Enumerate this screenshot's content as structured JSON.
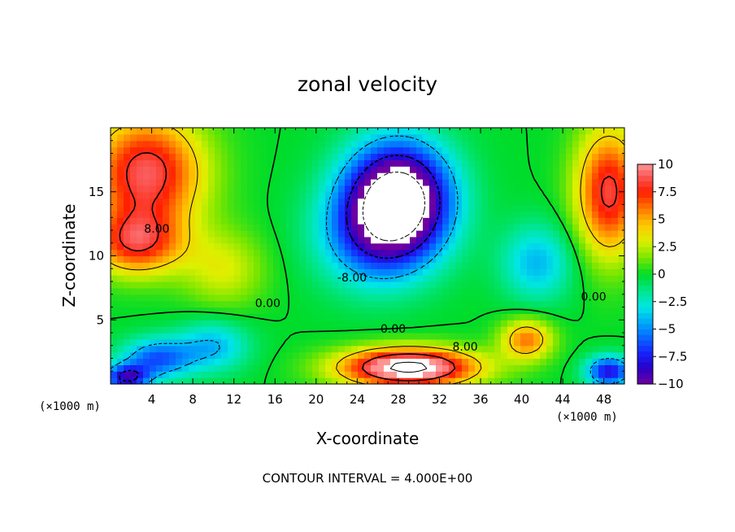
{
  "title": "zonal velocity",
  "footer": "CONTOUR INTERVAL = 4.000E+00",
  "chart_data": {
    "type": "heatmap",
    "title": "zonal velocity",
    "xlabel": "X-coordinate",
    "ylabel": "Z-coordinate",
    "x_unit": "(×1000 m)",
    "x_unit_right": "(×1000 m)",
    "xlim": [
      0,
      50
    ],
    "ylim": [
      0,
      20
    ],
    "x_ticks": [
      4,
      8,
      12,
      16,
      20,
      24,
      28,
      32,
      36,
      40,
      44,
      48
    ],
    "y_ticks": [
      5,
      10,
      15
    ],
    "colorbar": {
      "range": [
        -10,
        10
      ],
      "ticks": [
        "10",
        "7.5",
        "5",
        "2.5",
        "0",
        "−2.5",
        "−5",
        "−7.5",
        "−10"
      ]
    },
    "contour_interval": 4.0,
    "contour_labels": [
      {
        "text": "8.00",
        "x": 4.5,
        "y": 11.8
      },
      {
        "text": "0.00",
        "x": 15.3,
        "y": 6.0
      },
      {
        "text": "0.00",
        "x": 27.5,
        "y": 4.0
      },
      {
        "text": "8.00",
        "x": 34.5,
        "y": 2.6
      },
      {
        "text": "-8.00",
        "x": 23.5,
        "y": 8.0
      },
      {
        "text": "0.00",
        "x": 47.0,
        "y": 6.5
      }
    ],
    "features": [
      {
        "kind": "jet",
        "x": 28,
        "y": 14.5,
        "value": -14,
        "sx": 5.0,
        "sy": 4.3
      },
      {
        "kind": "jet",
        "x": 25.5,
        "y": 11.5,
        "value": -5,
        "sx": 5.5,
        "sy": 4.0
      },
      {
        "kind": "jet",
        "x": 29,
        "y": 1.3,
        "value": 13,
        "sx": 6.5,
        "sy": 1.5
      },
      {
        "kind": "jet",
        "x": 3.5,
        "y": 16.5,
        "value": 9,
        "sx": 5.5,
        "sy": 4.5
      },
      {
        "kind": "jet",
        "x": 2.5,
        "y": 11.0,
        "value": 7,
        "sx": 4.5,
        "sy": 2.5
      },
      {
        "kind": "jet",
        "x": 48.5,
        "y": 15.0,
        "value": 8.5,
        "sx": 3.2,
        "sy": 5.0
      },
      {
        "kind": "jet",
        "x": 40.5,
        "y": 3.5,
        "value": 6,
        "sx": 2.5,
        "sy": 1.6
      },
      {
        "kind": "jet",
        "x": 41.5,
        "y": 9.5,
        "value": -4,
        "sx": 3.5,
        "sy": 3.0
      },
      {
        "kind": "jet",
        "x": 4.5,
        "y": 2.0,
        "value": -6,
        "sx": 3.5,
        "sy": 1.6
      },
      {
        "kind": "jet",
        "x": 10,
        "y": 3.0,
        "value": -4,
        "sx": 3.5,
        "sy": 2.0
      },
      {
        "kind": "jet",
        "x": 1.5,
        "y": 0.5,
        "value": -8,
        "sx": 2.2,
        "sy": 1.0
      },
      {
        "kind": "jet",
        "x": 48.5,
        "y": 1.0,
        "value": -8,
        "sx": 2.2,
        "sy": 1.2
      },
      {
        "kind": "jet",
        "x": 11.0,
        "y": 9.0,
        "value": 3,
        "sx": 4.0,
        "sy": 3.0
      }
    ]
  }
}
